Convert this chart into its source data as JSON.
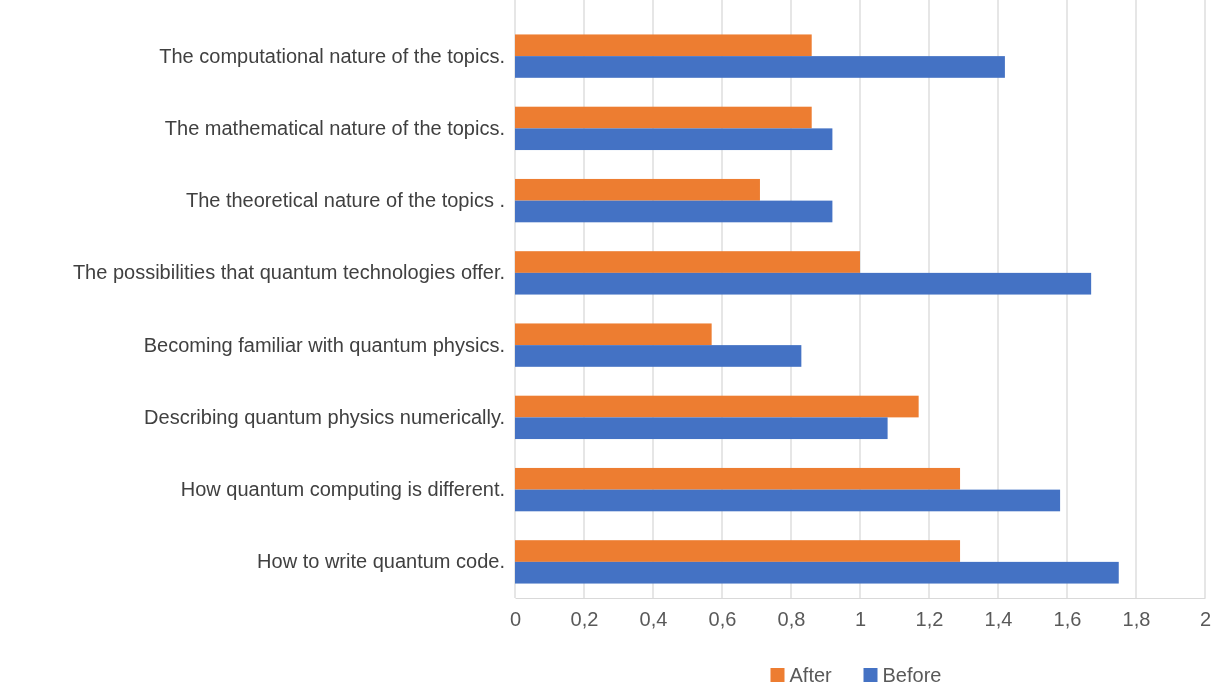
{
  "chart_data": {
    "type": "bar",
    "orientation": "horizontal",
    "categories": [
      "The computational nature of the topics.",
      "The mathematical nature of the topics.",
      "The theoretical nature of the topics .",
      "The possibilities that quantum technologies offer.",
      "Becoming familiar with quantum physics.",
      "Describing quantum physics numerically.",
      "How quantum computing is different.",
      "How to write quantum code."
    ],
    "series": [
      {
        "name": "After",
        "color": "#ed7d31",
        "values": [
          0.86,
          0.86,
          0.71,
          1.0,
          0.57,
          1.17,
          1.29,
          1.29
        ]
      },
      {
        "name": "Before",
        "color": "#4472c4",
        "values": [
          1.42,
          0.92,
          0.92,
          1.67,
          0.83,
          1.08,
          1.58,
          1.75
        ]
      }
    ],
    "xlim": [
      0,
      2
    ],
    "xticks": [
      {
        "value": 0,
        "label": "0"
      },
      {
        "value": 0.2,
        "label": "0,2"
      },
      {
        "value": 0.4,
        "label": "0,4"
      },
      {
        "value": 0.6,
        "label": "0,6"
      },
      {
        "value": 0.8,
        "label": "0,8"
      },
      {
        "value": 1,
        "label": "1"
      },
      {
        "value": 1.2,
        "label": "1,2"
      },
      {
        "value": 1.4,
        "label": "1,4"
      },
      {
        "value": 1.6,
        "label": "1,6"
      },
      {
        "value": 1.8,
        "label": "1,8"
      },
      {
        "value": 2,
        "label": "2"
      }
    ],
    "grid": "x",
    "legend": "bottom"
  }
}
